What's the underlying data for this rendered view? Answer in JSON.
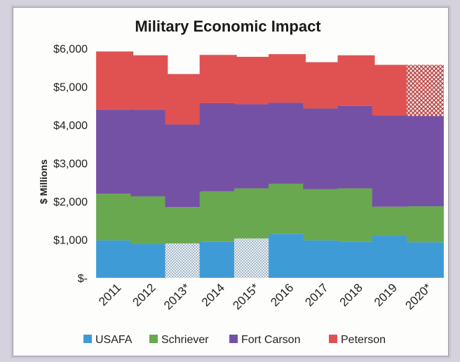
{
  "chart_data": {
    "type": "bar",
    "stacked": true,
    "title": "Military Economic Impact",
    "ylabel": "$ Millions",
    "xlabel": "",
    "ylim": [
      0,
      6000
    ],
    "yticks": [
      0,
      1000,
      2000,
      3000,
      4000,
      5000,
      6000
    ],
    "ytick_labels": [
      "$-",
      "$1,000",
      "$2,000",
      "$3,000",
      "$4,000",
      "$5,000",
      "$6,000"
    ],
    "categories": [
      "2011",
      "2012",
      "2013*",
      "2014",
      "2015*",
      "2016",
      "2017",
      "2018",
      "2019",
      "2020*"
    ],
    "series": [
      {
        "name": "USAFA",
        "color": "#3f9bd6",
        "values": [
          980,
          880,
          900,
          940,
          1030,
          1150,
          980,
          950,
          1100,
          930
        ]
      },
      {
        "name": "Schriever",
        "color": "#6aa84f",
        "values": [
          1220,
          1250,
          950,
          1320,
          1310,
          1310,
          1340,
          1390,
          760,
          940
        ]
      },
      {
        "name": "Fort Carson",
        "color": "#7551a6",
        "values": [
          2200,
          2270,
          2160,
          2310,
          2200,
          2120,
          2110,
          2160,
          2390,
          2360
        ]
      },
      {
        "name": "Peterson",
        "color": "#e05252",
        "values": [
          1520,
          1420,
          1320,
          1260,
          1240,
          1270,
          1210,
          1320,
          1320,
          1340
        ]
      }
    ],
    "hatched": [
      {
        "category": "2013*",
        "series": "USAFA"
      },
      {
        "category": "2015*",
        "series": "USAFA"
      },
      {
        "category": "2020*",
        "series": "Peterson"
      }
    ],
    "legend_position": "bottom",
    "grid": false
  }
}
